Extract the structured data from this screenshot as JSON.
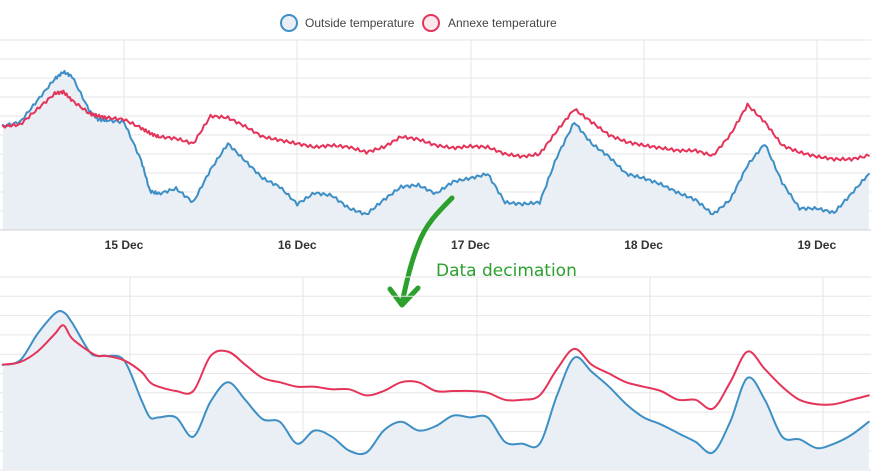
{
  "colors": {
    "outside": "#3d8fc6",
    "annexe": "#e5345a",
    "fill": "#e9eff4",
    "grid": "#e6e6e6",
    "annotation": "#2ca02c"
  },
  "annotation": {
    "text": "Data decimation",
    "arrow": "down-arrow-icon"
  },
  "chart_data": [
    {
      "type": "line",
      "title": "",
      "legend": {
        "placement": "top-center",
        "items": [
          "Outside temperature",
          "Annexe temperature"
        ]
      },
      "x": [
        14.3,
        14.4,
        14.5,
        14.6,
        14.65,
        14.7,
        14.8,
        14.85,
        14.9,
        15.0,
        15.1,
        15.15,
        15.2,
        15.3,
        15.4,
        15.5,
        15.6,
        15.7,
        15.8,
        15.9,
        16.0,
        16.1,
        16.2,
        16.3,
        16.4,
        16.5,
        16.6,
        16.7,
        16.8,
        16.9,
        17.0,
        17.1,
        17.2,
        17.3,
        17.4,
        17.5,
        17.6,
        17.7,
        17.8,
        17.9,
        18.0,
        18.1,
        18.2,
        18.3,
        18.4,
        18.5,
        18.6,
        18.7,
        18.8,
        18.9,
        19.0,
        19.1,
        19.2,
        19.3
      ],
      "xticks": [
        "15 Dec",
        "16 Dec",
        "17 Dec",
        "18 Dec",
        "19 Dec"
      ],
      "xtick_values": [
        15,
        16,
        17,
        18,
        19
      ],
      "ylim": [
        0,
        22
      ],
      "grid": true,
      "series": [
        {
          "name": "Outside temperature",
          "values": [
            12.0,
            12.5,
            15.0,
            17.5,
            18.3,
            17.8,
            13.8,
            12.8,
            12.7,
            12.5,
            8.0,
            4.5,
            4.2,
            4.8,
            3.2,
            7.0,
            10.0,
            8.0,
            6.0,
            5.0,
            3.0,
            4.3,
            4.0,
            2.5,
            1.8,
            3.5,
            5.0,
            5.2,
            4.2,
            5.6,
            6.0,
            6.5,
            3.2,
            3.0,
            3.2,
            8.5,
            12.5,
            10.0,
            8.5,
            6.5,
            6.0,
            5.3,
            4.3,
            3.5,
            1.8,
            3.5,
            7.5,
            10.0,
            5.5,
            2.5,
            2.5,
            2.0,
            4.2,
            6.5
          ]
        },
        {
          "name": "Annexe temperature",
          "values": [
            12.0,
            12.2,
            14.0,
            15.8,
            16.0,
            15.0,
            13.5,
            13.2,
            13.0,
            12.8,
            11.8,
            11.2,
            10.8,
            10.6,
            10.0,
            13.2,
            13.0,
            12.0,
            10.8,
            10.4,
            10.0,
            9.6,
            9.8,
            9.6,
            9.0,
            9.6,
            10.8,
            10.5,
            9.8,
            9.5,
            9.7,
            9.6,
            8.8,
            8.5,
            8.8,
            11.5,
            14.0,
            12.5,
            11.0,
            10.2,
            9.8,
            9.5,
            9.2,
            9.2,
            8.6,
            11.0,
            14.5,
            12.5,
            9.8,
            9.0,
            8.5,
            8.2,
            8.2,
            8.6
          ]
        }
      ]
    },
    {
      "type": "line",
      "title": "",
      "x": [
        14.3,
        14.4,
        14.5,
        14.6,
        14.65,
        14.7,
        14.8,
        14.85,
        14.9,
        15.0,
        15.1,
        15.15,
        15.2,
        15.3,
        15.4,
        15.5,
        15.6,
        15.7,
        15.8,
        15.9,
        16.0,
        16.1,
        16.2,
        16.3,
        16.4,
        16.5,
        16.6,
        16.7,
        16.8,
        16.9,
        17.0,
        17.1,
        17.2,
        17.3,
        17.4,
        17.5,
        17.6,
        17.7,
        17.8,
        17.9,
        18.0,
        18.1,
        18.2,
        18.3,
        18.4,
        18.5,
        18.6,
        18.7,
        18.8,
        18.9,
        19.0,
        19.1,
        19.2,
        19.3
      ],
      "xticks": [],
      "xtick_values": [
        15,
        16,
        17,
        18,
        19
      ],
      "ylim": [
        0,
        22
      ],
      "grid": true,
      "series": [
        {
          "name": "Outside temperature",
          "values": [
            12.0,
            12.5,
            15.5,
            17.8,
            18.0,
            16.8,
            13.5,
            13.0,
            13.0,
            12.5,
            8.0,
            6.0,
            6.0,
            6.0,
            3.8,
            7.8,
            10.0,
            8.0,
            5.8,
            5.5,
            3.0,
            4.5,
            3.8,
            2.2,
            2.0,
            4.5,
            5.5,
            4.5,
            5.0,
            6.2,
            6.0,
            6.0,
            3.2,
            3.0,
            3.0,
            8.5,
            12.8,
            11.2,
            9.5,
            7.5,
            6.0,
            5.2,
            4.2,
            3.2,
            2.0,
            5.5,
            10.5,
            8.0,
            3.8,
            3.5,
            2.5,
            3.0,
            4.0,
            5.5
          ]
        },
        {
          "name": "Annexe temperature",
          "values": [
            12.0,
            12.3,
            13.5,
            15.5,
            16.5,
            15.0,
            13.5,
            13.0,
            13.0,
            12.5,
            11.2,
            10.0,
            9.5,
            9.0,
            9.0,
            13.0,
            13.5,
            12.0,
            10.5,
            10.0,
            9.5,
            9.5,
            9.2,
            9.2,
            8.5,
            9.0,
            10.0,
            10.0,
            9.0,
            9.0,
            9.0,
            8.8,
            8.0,
            8.0,
            8.5,
            11.5,
            13.8,
            12.0,
            11.0,
            10.0,
            9.5,
            9.0,
            8.0,
            8.0,
            7.0,
            10.0,
            13.5,
            11.5,
            9.5,
            8.0,
            7.5,
            7.5,
            8.0,
            8.5
          ]
        }
      ]
    }
  ]
}
